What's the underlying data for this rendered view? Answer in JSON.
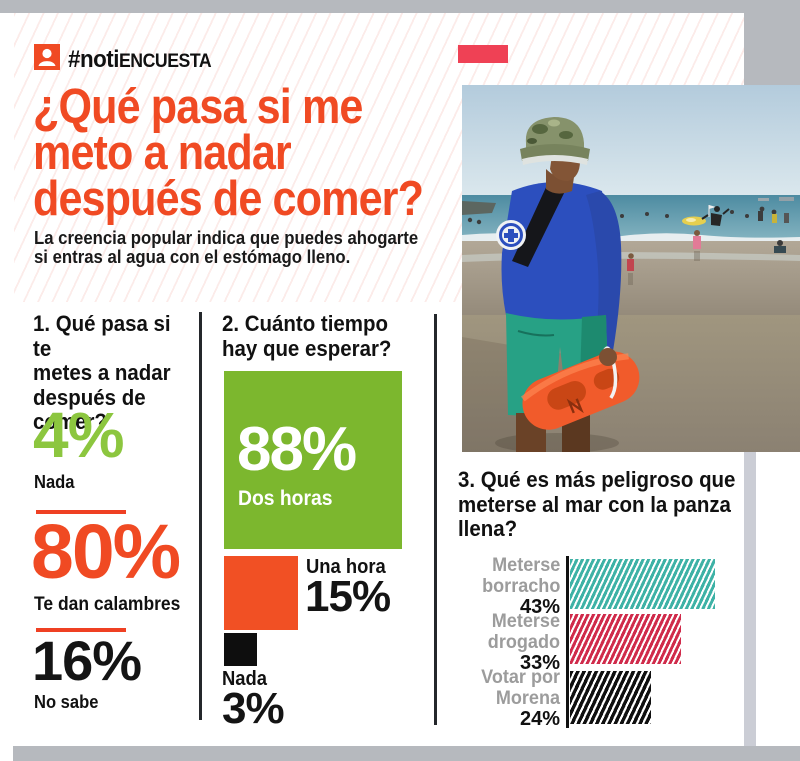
{
  "brand": {
    "hash": "#noti",
    "rest": "ENCUESTA"
  },
  "header": {
    "headline": "¿Qué pasa si me\nmeto a nadar\ndespués de comer?",
    "subtitle": "La creencia popular indica que puedes ahogarte\nsi entras al agua con el estómago lleno."
  },
  "sections": {
    "q1": {
      "title": "1. Qué pasa si te\nmetes a nadar\ndespués de\ncomer?",
      "stats": [
        {
          "value": "4%",
          "label": "Nada"
        },
        {
          "value": "80%",
          "label": "Te dan calambres"
        },
        {
          "value": "16%",
          "label": "No sabe"
        }
      ]
    },
    "q2": {
      "title": "2. Cuánto tiempo\nhay que esperar?",
      "big": {
        "value": "88%",
        "label": "Dos horas"
      },
      "mid": {
        "label": "Una hora",
        "value": "15%"
      },
      "small": {
        "label": "Nada",
        "value": "3%"
      }
    },
    "q3": {
      "title": "3. Qué es más peligroso que\nmeterse al mar con la panza\nllena?",
      "bars": [
        {
          "label": "Meterse\nborracho",
          "value": "43%"
        },
        {
          "label": "Meterse\ndrogado",
          "value": "33%"
        },
        {
          "label": "Votar por\nMorena",
          "value": "24%"
        }
      ]
    }
  },
  "colors": {
    "accent_orange": "#f04a23",
    "accent_red_rect": "#ef4155",
    "green": "#7cb72e",
    "green_text": "#8cc63f",
    "teal_bar": "#3eb2a6",
    "crimson_bar": "#d02b4b",
    "black_bar": "#101010",
    "frame_gray": "#b6b9be",
    "label_gray": "#9c9c9c"
  },
  "chart_data": [
    {
      "type": "bar",
      "title": "1. Qué pasa si te metes a nadar después de comer?",
      "categories": [
        "Nada",
        "Te dan calambres",
        "No sabe"
      ],
      "values": [
        4,
        80,
        16
      ],
      "unit": "%",
      "colors": [
        "#8cc63f",
        "#f04a23",
        "#141414"
      ],
      "style": "big numeric callouts with labels"
    },
    {
      "type": "bar",
      "title": "2. Cuánto tiempo hay que esperar?",
      "categories": [
        "Dos horas",
        "Una hora",
        "Nada"
      ],
      "values": [
        88,
        15,
        3
      ],
      "unit": "%",
      "colors": [
        "#7cb72e",
        "#f15024",
        "#0e0e0e"
      ],
      "style": "proportional squares"
    },
    {
      "type": "bar",
      "title": "3. Qué es más peligroso que meterse al mar con la panza llena?",
      "categories": [
        "Meterse borracho",
        "Meterse drogado",
        "Votar por Morena"
      ],
      "values": [
        43,
        33,
        24
      ],
      "unit": "%",
      "colors": [
        "#3eb2a6",
        "#d02b4b",
        "#101010"
      ],
      "style": "horizontal striped bars, baseline axis on left"
    }
  ]
}
